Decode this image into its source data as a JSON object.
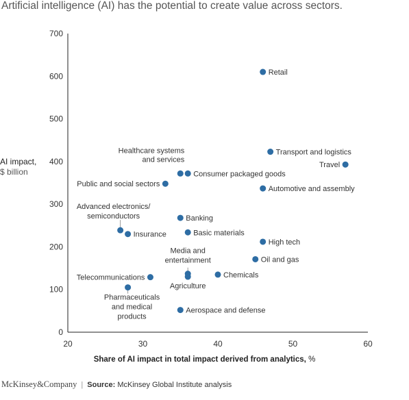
{
  "title": "Artificial intelligence (AI) has the potential to create value across sectors.",
  "footer": {
    "brand": "McKinsey&Company",
    "source_label": "Source:",
    "source_text": "McKinsey Global Institute analysis"
  },
  "chart_data": {
    "type": "scatter",
    "xlabel_bold": "Share of AI impact in total impact derived from analytics,",
    "xlabel_unit": "%",
    "ylabel_bold": "AI impact,",
    "ylabel_unit": "$ billion",
    "xlim": [
      20,
      60
    ],
    "ylim": [
      0,
      700
    ],
    "xticks": [
      20,
      30,
      40,
      50,
      60
    ],
    "yticks": [
      0,
      100,
      200,
      300,
      400,
      500,
      600,
      700
    ],
    "grid": false,
    "point_color": "#2e6da4",
    "points": [
      {
        "label": "Retail",
        "x": 46,
        "y": 610
      },
      {
        "label": "Transport and logistics",
        "x": 47,
        "y": 423
      },
      {
        "label": "Travel",
        "x": 57,
        "y": 393
      },
      {
        "label": "Healthcare systems\nand services",
        "x": 35,
        "y": 372
      },
      {
        "label": "Consumer packaged goods",
        "x": 36,
        "y": 372
      },
      {
        "label": "Public and social sectors",
        "x": 33,
        "y": 348
      },
      {
        "label": "Automotive and assembly",
        "x": 46,
        "y": 337
      },
      {
        "label": "Banking",
        "x": 35,
        "y": 268
      },
      {
        "label": "Advanced electronics/\nsemiconductors",
        "x": 27,
        "y": 239
      },
      {
        "label": "Insurance",
        "x": 28,
        "y": 230
      },
      {
        "label": "Basic materials",
        "x": 36,
        "y": 234
      },
      {
        "label": "High tech",
        "x": 46,
        "y": 212
      },
      {
        "label": "Oil and gas",
        "x": 45,
        "y": 171
      },
      {
        "label": "Media and\nentertainment",
        "x": 36,
        "y": 137
      },
      {
        "label": "Agriculture",
        "x": 36,
        "y": 130
      },
      {
        "label": "Chemicals",
        "x": 40,
        "y": 135
      },
      {
        "label": "Telecommunications",
        "x": 31,
        "y": 129
      },
      {
        "label": "Pharmaceuticals\nand medical\nproducts",
        "x": 28,
        "y": 105
      },
      {
        "label": "Aerospace and defense",
        "x": 35,
        "y": 52
      }
    ]
  }
}
